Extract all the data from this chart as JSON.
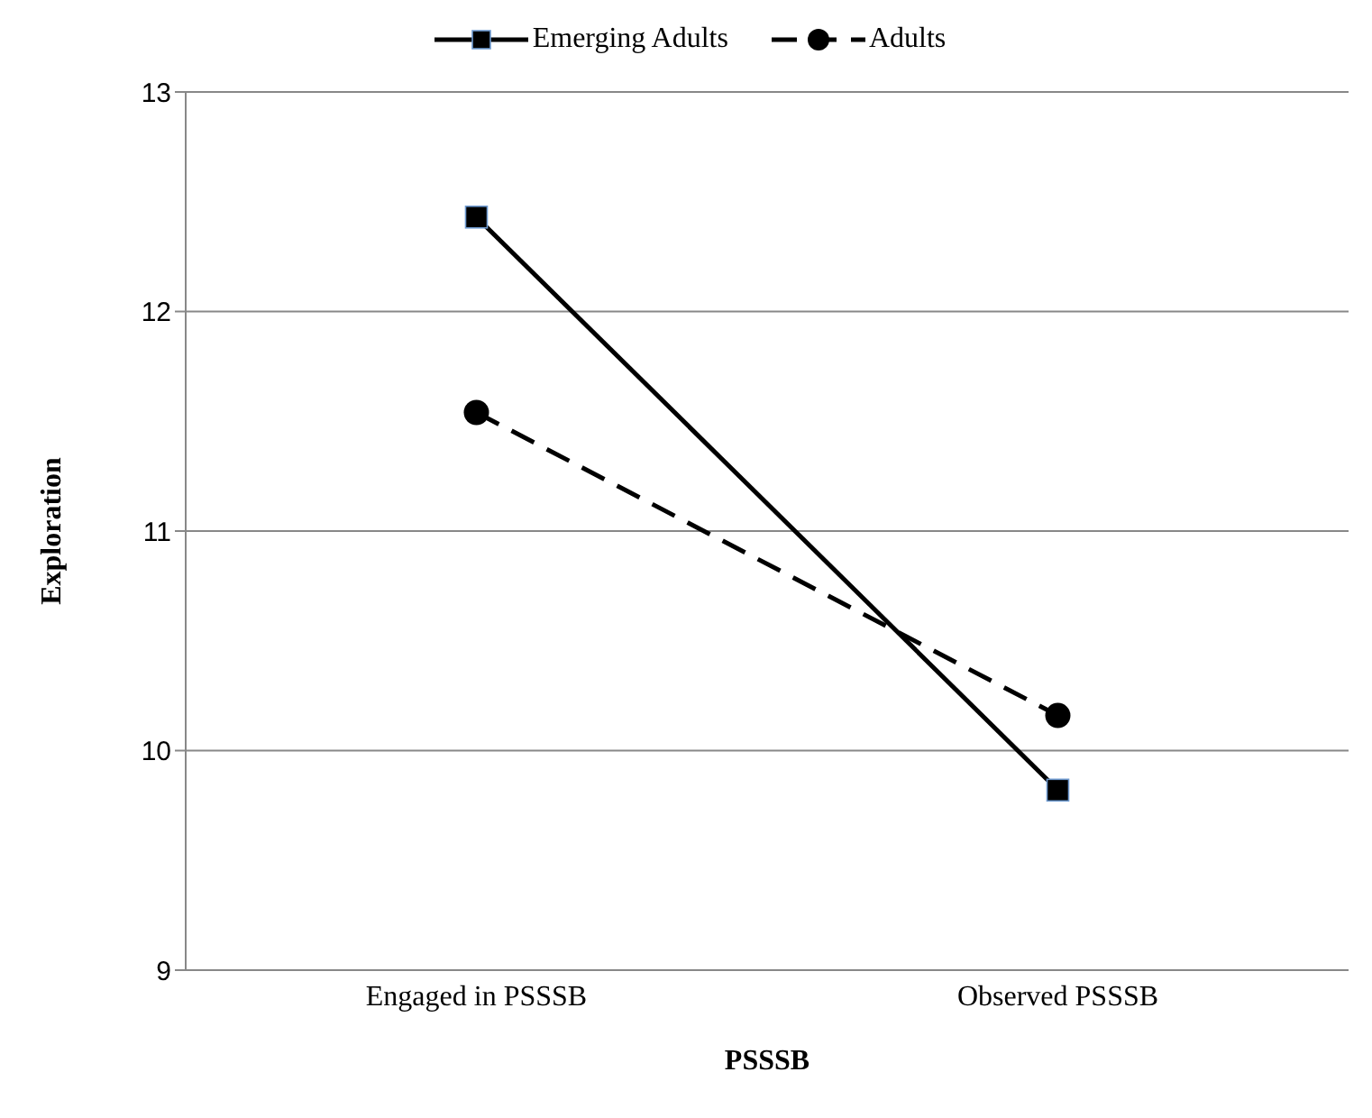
{
  "chart_data": {
    "type": "line",
    "xlabel": "PSSSB",
    "ylabel": "Exploration",
    "categories": [
      "Engaged in PSSSB",
      "Observed PSSSB"
    ],
    "series": [
      {
        "name": "Emerging Adults",
        "color": "#000000",
        "values": [
          12.43,
          9.82
        ],
        "marker": "square",
        "line_style": "solid"
      },
      {
        "name": "Adults",
        "color": "#000000",
        "values": [
          11.54,
          10.16
        ],
        "marker": "circle",
        "line_style": "dashed"
      }
    ],
    "ylim": [
      9,
      13
    ],
    "yticks": [
      9,
      10,
      11,
      12,
      13
    ],
    "grid": "y",
    "legend": "top"
  }
}
